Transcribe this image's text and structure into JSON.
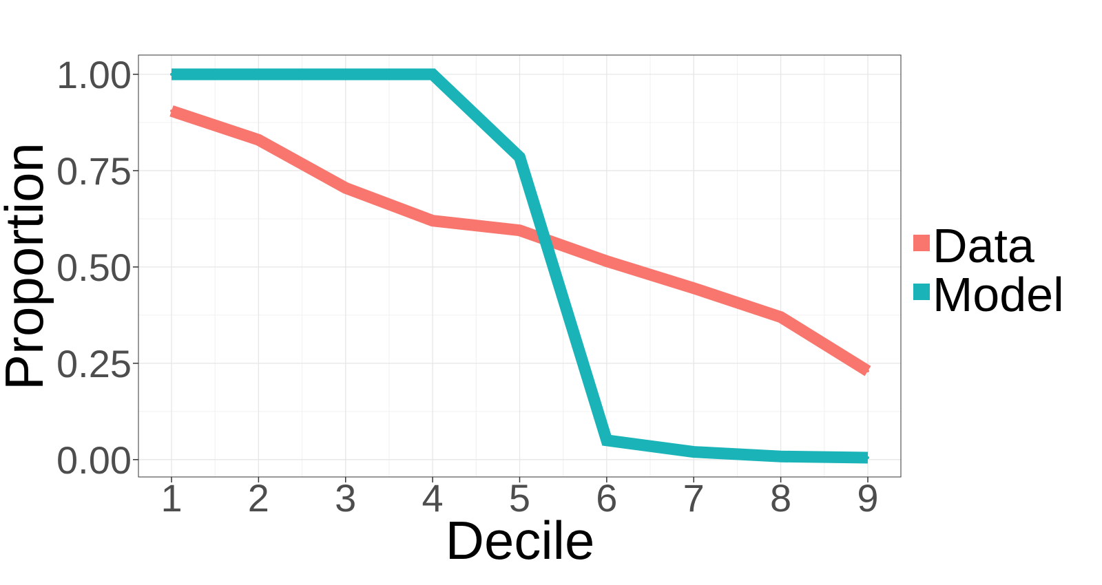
{
  "chart_data": {
    "type": "line",
    "title": "",
    "xlabel": "Decile",
    "ylabel": "Proportion",
    "x": [
      1,
      2,
      3,
      4,
      5,
      6,
      7,
      8,
      9
    ],
    "x_tick_labels": [
      "1",
      "2",
      "3",
      "4",
      "5",
      "6",
      "7",
      "8",
      "9"
    ],
    "y_tick_labels": [
      "0.00",
      "0.25",
      "0.50",
      "0.75",
      "1.00"
    ],
    "xlim": [
      0.62,
      9.38
    ],
    "ylim": [
      -0.045,
      1.05
    ],
    "grid": true,
    "legend_position": "right",
    "series": [
      {
        "name": "Data",
        "color": "#F8766D",
        "values": [
          0.905,
          0.83,
          0.705,
          0.62,
          0.595,
          0.515,
          0.445,
          0.37,
          0.23
        ]
      },
      {
        "name": "Model",
        "color": "#1AB4B8",
        "values": [
          1.0,
          1.0,
          1.0,
          1.0,
          0.785,
          0.05,
          0.02,
          0.008,
          0.005
        ]
      }
    ]
  }
}
